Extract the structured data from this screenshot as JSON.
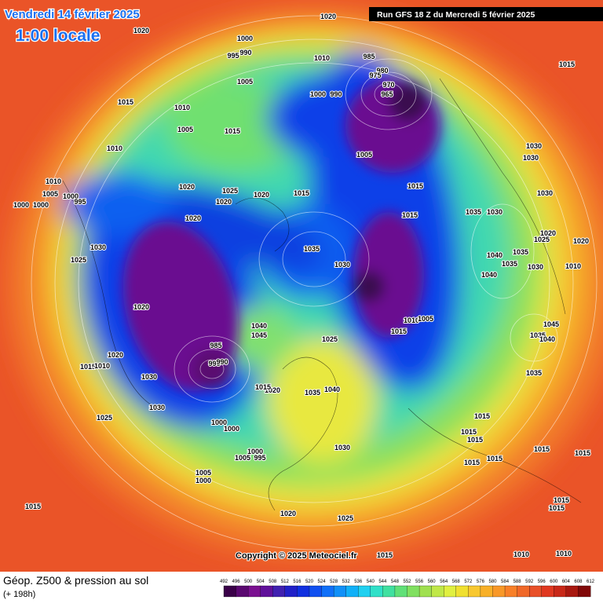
{
  "header": {
    "date": "Vendredi 14 février 2025",
    "time": "1:00 locale",
    "run": "Run GFS 18 Z du Mercredi 5 février 2025"
  },
  "copyright": "Copyright © 2025 Meteociel.fr",
  "footer": {
    "title": "Géop. Z500 & pression au sol",
    "lead": "(+ 198h)"
  },
  "color_scale": {
    "labels": [
      492,
      496,
      500,
      504,
      508,
      512,
      516,
      520,
      524,
      528,
      532,
      536,
      540,
      544,
      548,
      552,
      556,
      560,
      564,
      568,
      572,
      576,
      580,
      584,
      588,
      592,
      596,
      600,
      604,
      608,
      612
    ],
    "colors": [
      "#3a0048",
      "#5a0870",
      "#7a1090",
      "#60109a",
      "#4020b0",
      "#2020c8",
      "#1030e0",
      "#1050f0",
      "#1070f8",
      "#1090f8",
      "#10b0f8",
      "#20d0f0",
      "#30e0c8",
      "#40e0a0",
      "#60e078",
      "#80e060",
      "#a0e050",
      "#c0e848",
      "#e0f040",
      "#f0e030",
      "#f8c830",
      "#f8b028",
      "#f89828",
      "#f88028",
      "#f06828",
      "#e85028",
      "#e03820",
      "#c82818",
      "#a81810",
      "#800808"
    ]
  },
  "isobar_labels": [
    "1020",
    "1020",
    "1000",
    "995",
    "990",
    "1010",
    "985",
    "980",
    "975",
    "970",
    "965",
    "1000",
    "990",
    "1015",
    "1015",
    "1010",
    "1005",
    "1005",
    "1015",
    "1005",
    "1030",
    "1030",
    "1010",
    "1010",
    "1005",
    "1000",
    "995",
    "1000",
    "1000",
    "1020",
    "1025",
    "1020",
    "1020",
    "1015",
    "1015",
    "1030",
    "1015",
    "1035",
    "1030",
    "1020",
    "1030",
    "1025",
    "1035",
    "1030",
    "1040",
    "1035",
    "1035",
    "1030",
    "1040",
    "1020",
    "1025",
    "1020",
    "1010",
    "1020",
    "1010",
    "1005",
    "1015",
    "1025",
    "1040",
    "1045",
    "1045",
    "1035",
    "1040",
    "1020",
    "1015",
    "1010",
    "1030",
    "1035",
    "1040",
    "1035",
    "1020",
    "1015",
    "1030",
    "1025",
    "1000",
    "1000",
    "1015",
    "1015",
    "1015",
    "1030",
    "1000",
    "1005",
    "995",
    "1015",
    "1015",
    "1015",
    "1015",
    "1005",
    "1000",
    "1015",
    "1020",
    "1025",
    "1015",
    "1015",
    "1010",
    "1010",
    "1015",
    "985",
    "995",
    "990"
  ]
}
